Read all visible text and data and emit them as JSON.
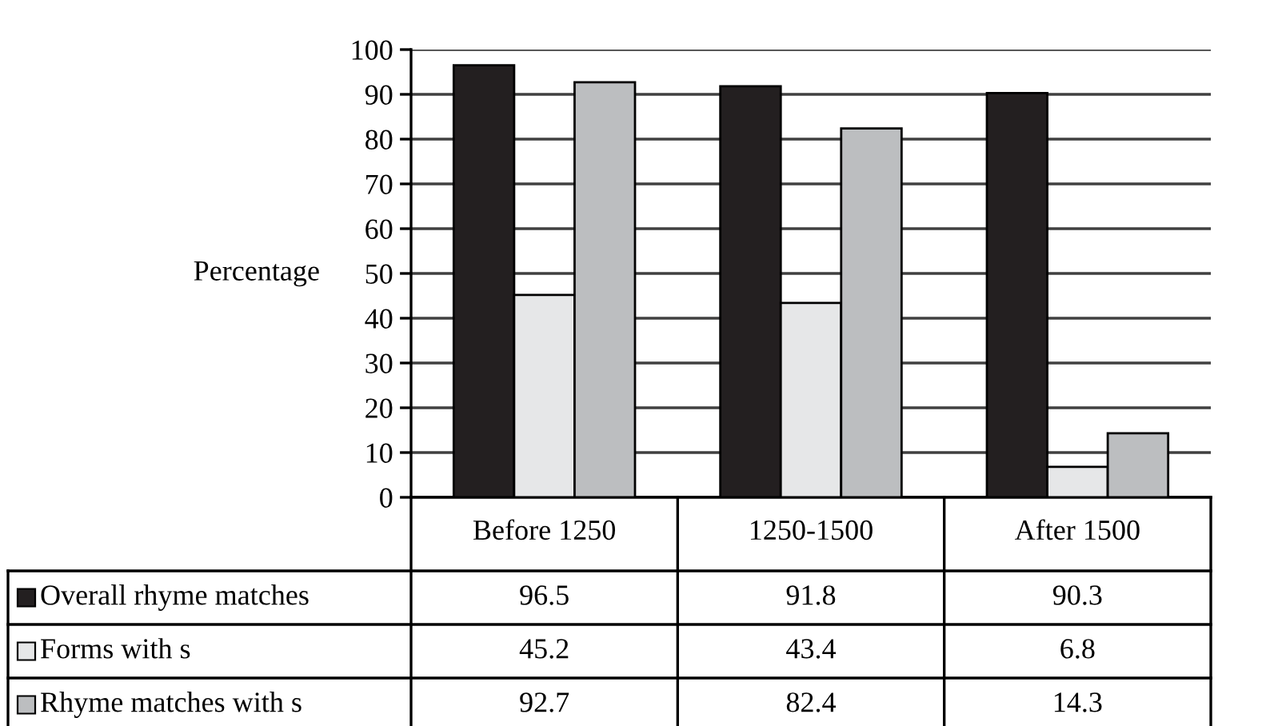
{
  "chart_data": {
    "type": "bar",
    "categories": [
      "Before 1250",
      "1250-1500",
      "After 1500"
    ],
    "series": [
      {
        "name": "Overall rhyme matches",
        "color": "#231f20",
        "values": [
          96.5,
          91.8,
          90.3
        ]
      },
      {
        "name": "Forms with s",
        "color": "#e6e7e8",
        "values": [
          45.2,
          43.4,
          6.8
        ]
      },
      {
        "name": "Rhyme matches with s",
        "color": "#bcbec0",
        "values": [
          92.7,
          82.4,
          14.3
        ]
      }
    ],
    "ylabel": "Percentage",
    "ylim": [
      0,
      100
    ],
    "yticks": [
      0,
      10,
      20,
      30,
      40,
      50,
      60,
      70,
      80,
      90,
      100
    ],
    "grid": "y",
    "legend": "bottom",
    "data_labels": true
  }
}
